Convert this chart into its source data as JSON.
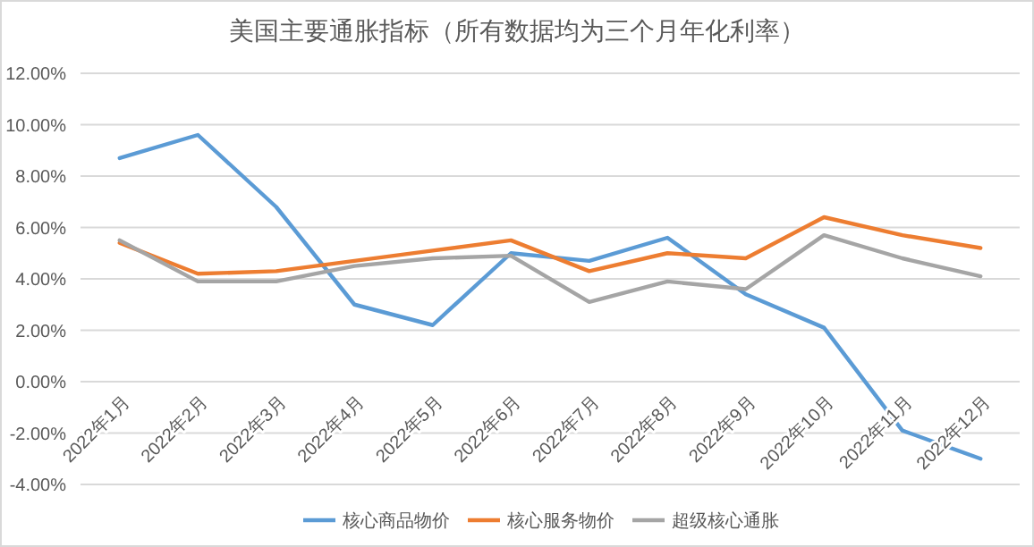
{
  "chart_data": {
    "type": "line",
    "title": "美国主要通胀指标（所有数据均为三个月年化利率）",
    "categories": [
      "2022年1月",
      "2022年2月",
      "2022年3月",
      "2022年4月",
      "2022年5月",
      "2022年6月",
      "2022年7月",
      "2022年8月",
      "2022年9月",
      "2022年10月",
      "2022年11月",
      "2022年12月"
    ],
    "series": [
      {
        "name": "核心商品物价",
        "color": "#5b9bd5",
        "values": [
          8.7,
          9.6,
          6.8,
          3.0,
          2.2,
          5.0,
          4.7,
          5.6,
          3.4,
          2.1,
          -1.9,
          -3.0
        ]
      },
      {
        "name": "核心服务物价",
        "color": "#ed7d31",
        "values": [
          5.4,
          4.2,
          4.3,
          4.7,
          5.1,
          5.5,
          4.3,
          5.0,
          4.8,
          6.4,
          5.7,
          5.2
        ]
      },
      {
        "name": "超级核心通胀",
        "color": "#a5a5a5",
        "values": [
          5.5,
          3.9,
          3.9,
          4.5,
          4.8,
          4.9,
          3.1,
          3.9,
          3.6,
          5.7,
          4.8,
          4.1
        ]
      }
    ],
    "ylim": [
      -4,
      12
    ],
    "yticks": [
      {
        "value": -4,
        "label": "-4.00%"
      },
      {
        "value": -2,
        "label": "-2.00%"
      },
      {
        "value": 0,
        "label": "0.00%"
      },
      {
        "value": 2,
        "label": "2.00%"
      },
      {
        "value": 4,
        "label": "4.00%"
      },
      {
        "value": 6,
        "label": "6.00%"
      },
      {
        "value": 8,
        "label": "8.00%"
      },
      {
        "value": 10,
        "label": "10.00%"
      },
      {
        "value": 12,
        "label": "12.00%"
      }
    ],
    "grid": "y",
    "legend": "bottom",
    "marker": "none",
    "line_style": "solid"
  }
}
